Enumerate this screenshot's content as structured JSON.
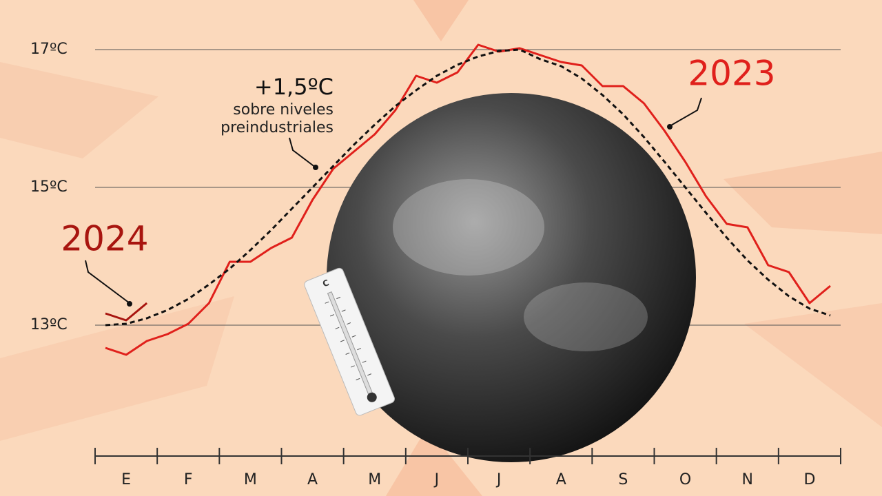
{
  "chart_data": {
    "type": "line",
    "categories": [
      null,
      "E",
      null,
      null,
      "F",
      null,
      null,
      "M",
      null,
      null,
      "A",
      null,
      null,
      "M",
      null,
      null,
      "J",
      null,
      null,
      "J",
      null,
      null,
      "A",
      null,
      null,
      "S",
      null,
      null,
      "O",
      null,
      null,
      "N",
      null,
      null,
      "D",
      null
    ],
    "series": [
      {
        "name": "2023",
        "color": "#e0201b",
        "values": [
          12.67,
          12.57,
          12.77,
          12.87,
          13.02,
          13.32,
          13.92,
          13.92,
          14.12,
          14.27,
          14.82,
          15.27,
          15.52,
          15.77,
          16.12,
          16.62,
          16.52,
          16.67,
          17.07,
          16.97,
          17.02,
          16.92,
          16.82,
          16.77,
          16.47,
          16.47,
          16.22,
          15.82,
          15.37,
          14.87,
          14.47,
          14.42,
          13.87,
          13.77,
          13.32,
          13.57
        ]
      },
      {
        "name": "2024",
        "color": "#a8150f",
        "values": [
          13.17,
          13.07,
          13.32,
          null,
          null,
          null,
          null,
          null,
          null,
          null,
          null,
          null,
          null,
          null,
          null,
          null,
          null,
          null,
          null,
          null,
          null,
          null,
          null,
          null,
          null,
          null,
          null,
          null,
          null,
          null,
          null,
          null,
          null,
          null,
          null,
          null
        ]
      },
      {
        "name": "+1,5ºC",
        "color": "#111111",
        "dashed": true,
        "values": [
          13.0,
          13.02,
          13.1,
          13.22,
          13.38,
          13.59,
          13.82,
          14.09,
          14.38,
          14.69,
          15.0,
          15.31,
          15.62,
          15.91,
          16.18,
          16.41,
          16.62,
          16.78,
          16.9,
          16.98,
          17.0,
          16.86,
          16.76,
          16.58,
          16.34,
          16.06,
          15.73,
          15.37,
          15.0,
          14.63,
          14.27,
          13.94,
          13.66,
          13.42,
          13.24,
          13.14
        ]
      }
    ],
    "annotations": [
      "sobre niveles",
      "preindustriales"
    ],
    "ylim": [
      12.3,
      17.5
    ],
    "yticks": [
      {
        "value": 13,
        "label": "13ºC"
      },
      {
        "value": 15,
        "label": "15ºC"
      },
      {
        "value": 17,
        "label": "17ºC"
      }
    ],
    "grid": true
  }
}
